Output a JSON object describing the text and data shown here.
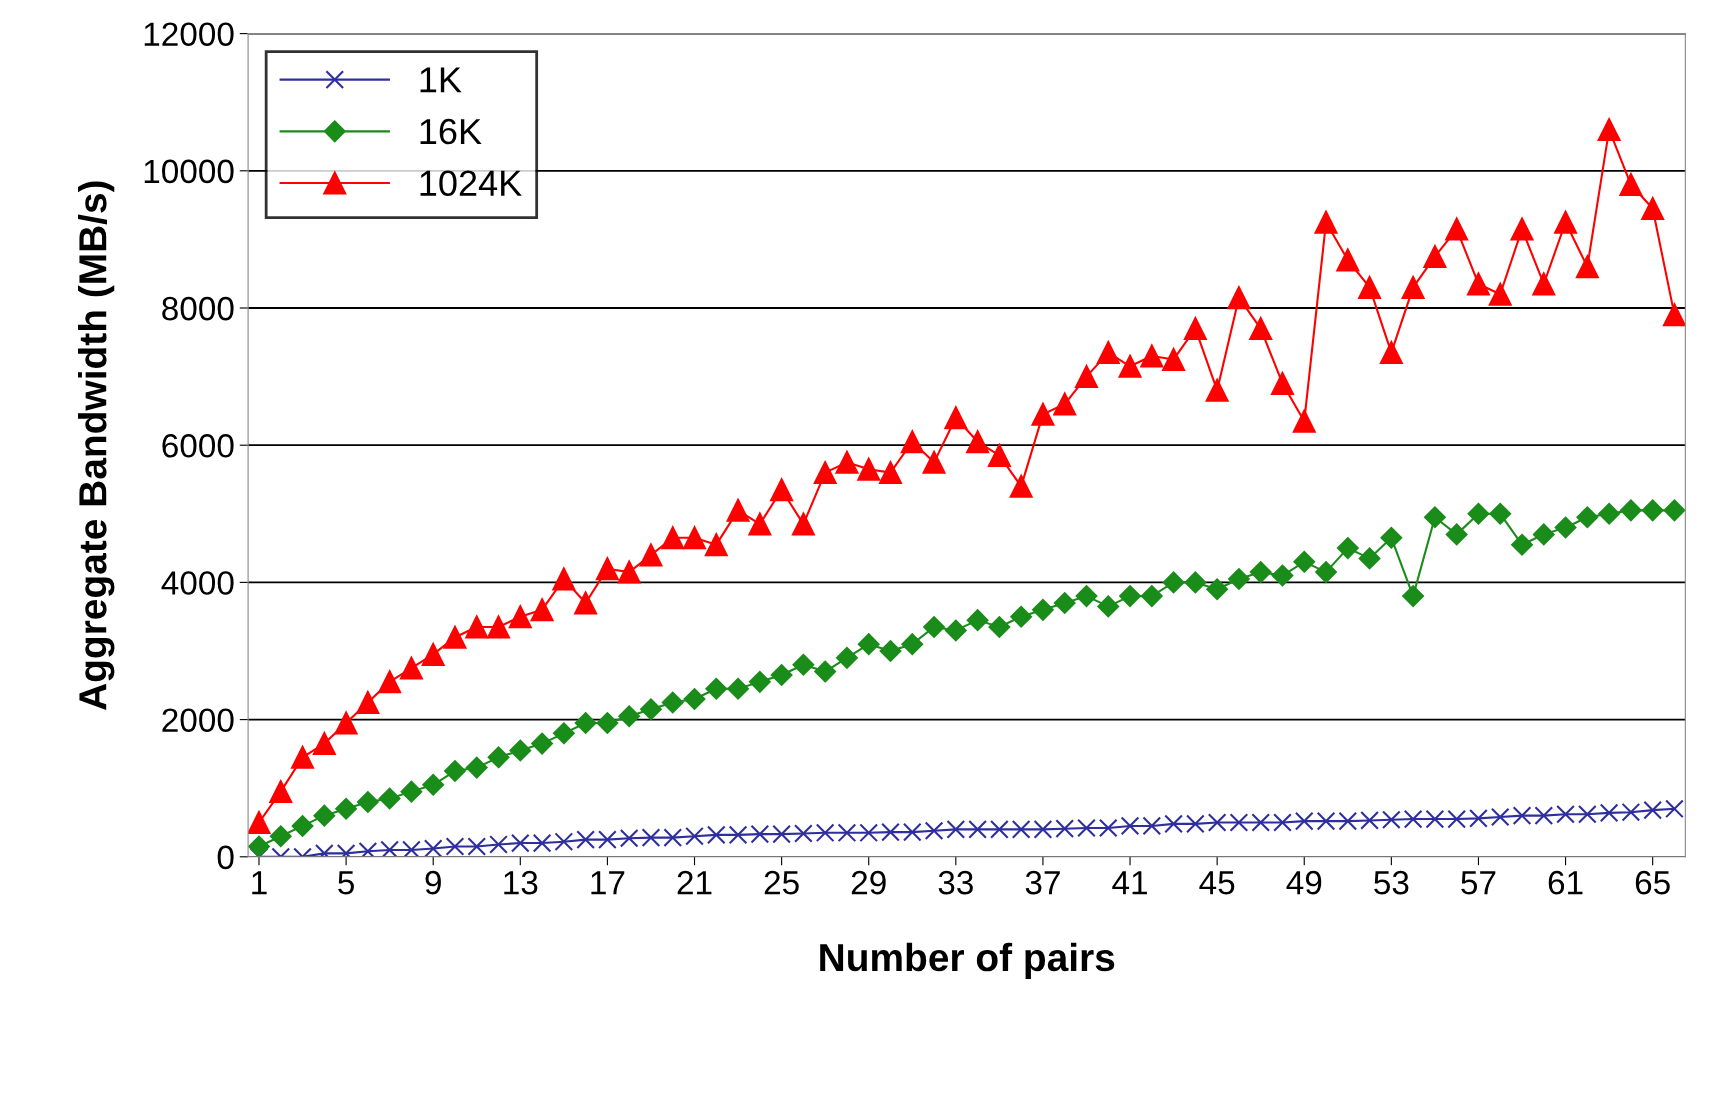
{
  "chart_data": {
    "type": "line",
    "xlabel": "Number of pairs",
    "ylabel": "Aggregate Bandwidth (MB/s)",
    "x": [
      1,
      2,
      3,
      4,
      5,
      6,
      7,
      8,
      9,
      10,
      11,
      12,
      13,
      14,
      15,
      16,
      17,
      18,
      19,
      20,
      21,
      22,
      23,
      24,
      25,
      26,
      27,
      28,
      29,
      30,
      31,
      32,
      33,
      34,
      35,
      36,
      37,
      38,
      39,
      40,
      41,
      42,
      43,
      44,
      45,
      46,
      47,
      48,
      49,
      50,
      51,
      52,
      53,
      54,
      55,
      56,
      57,
      58,
      59,
      60,
      61,
      62,
      63,
      64,
      65,
      66
    ],
    "series": [
      {
        "name": "1K",
        "color": "#2e2e9e",
        "marker": "cross",
        "values": [
          0,
          0,
          0,
          50,
          50,
          80,
          100,
          100,
          120,
          150,
          150,
          180,
          200,
          200,
          220,
          250,
          250,
          270,
          280,
          280,
          300,
          320,
          320,
          330,
          330,
          340,
          350,
          350,
          350,
          360,
          360,
          380,
          400,
          400,
          400,
          400,
          400,
          410,
          420,
          420,
          450,
          450,
          480,
          480,
          500,
          500,
          500,
          500,
          520,
          520,
          520,
          530,
          540,
          550,
          550,
          550,
          560,
          580,
          600,
          600,
          620,
          620,
          640,
          650,
          680,
          700
        ]
      },
      {
        "name": "16K",
        "color": "#1a8c1a",
        "marker": "diamond",
        "values": [
          150,
          300,
          450,
          600,
          700,
          800,
          850,
          950,
          1050,
          1250,
          1300,
          1450,
          1550,
          1650,
          1800,
          1950,
          1950,
          2050,
          2150,
          2250,
          2300,
          2450,
          2450,
          2550,
          2650,
          2800,
          2700,
          2900,
          3100,
          3000,
          3100,
          3350,
          3300,
          3450,
          3350,
          3500,
          3600,
          3700,
          3800,
          3650,
          3800,
          3800,
          4000,
          4000,
          3900,
          4050,
          4150,
          4100,
          4300,
          4150,
          4500,
          4350,
          4650,
          3800,
          4950,
          4700,
          5000,
          5000,
          4550,
          4700,
          4800,
          4950,
          5000,
          5050,
          5050,
          5050
        ]
      },
      {
        "name": "1024K",
        "color": "#ff0000",
        "marker": "triangle",
        "values": [
          500,
          950,
          1450,
          1650,
          1950,
          2250,
          2550,
          2750,
          2950,
          3200,
          3350,
          3350,
          3500,
          3600,
          4050,
          3700,
          4200,
          4150,
          4400,
          4650,
          4650,
          4550,
          5050,
          4850,
          5350,
          4850,
          5600,
          5750,
          5650,
          5600,
          6050,
          5750,
          6400,
          6050,
          5850,
          5400,
          6450,
          6600,
          7000,
          7350,
          7150,
          7300,
          7250,
          7700,
          6800,
          8150,
          7700,
          6900,
          6350,
          9250,
          8700,
          8300,
          7350,
          8300,
          8750,
          9150,
          8350,
          8200,
          9150,
          8350,
          9250,
          8600,
          10600,
          9800,
          9450,
          7900
        ]
      }
    ],
    "xlim": [
      0.5,
      66.5
    ],
    "xticks": [
      1,
      5,
      9,
      13,
      17,
      21,
      25,
      29,
      33,
      37,
      41,
      45,
      49,
      53,
      57,
      61,
      65
    ],
    "ylim": [
      0,
      12000
    ],
    "yticks": [
      0,
      2000,
      4000,
      6000,
      8000,
      10000,
      12000
    ],
    "grid": "y",
    "legend": "top left",
    "line_style": "solid"
  }
}
